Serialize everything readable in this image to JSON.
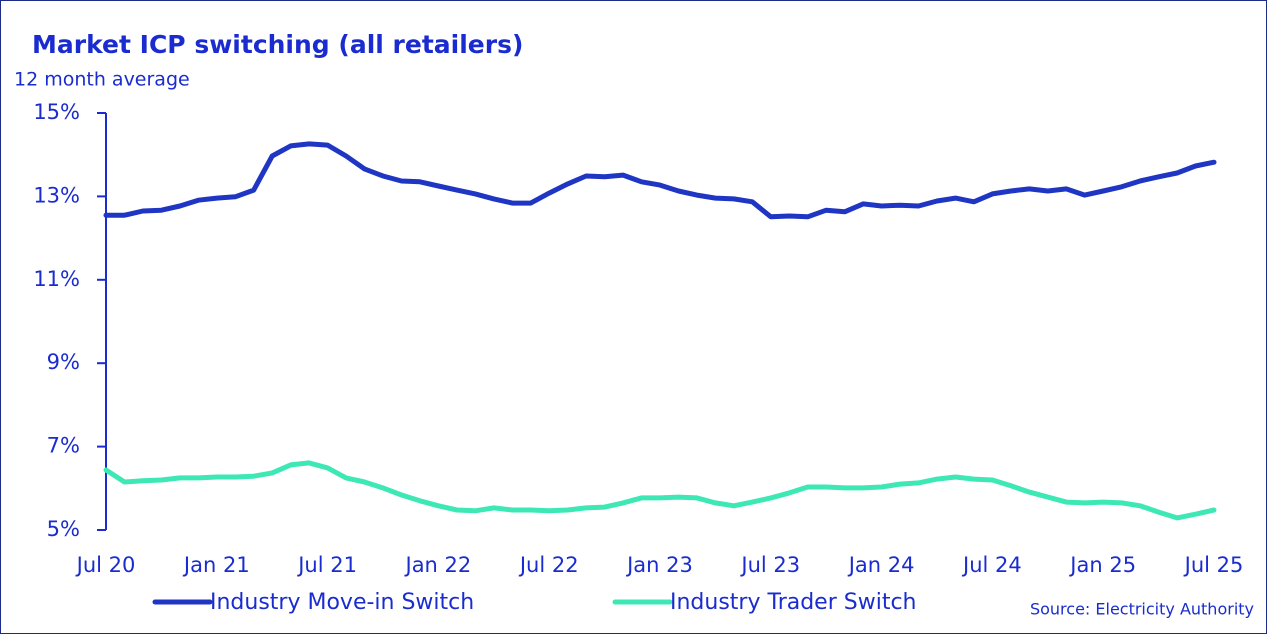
{
  "chart_data": {
    "type": "line",
    "title": "Market ICP switching (all retailers)",
    "subtitle": "12 month average",
    "source": "Source: Electricity Authority",
    "categories": [
      "Jul 20",
      null,
      null,
      null,
      null,
      null,
      "Jan 21",
      null,
      null,
      null,
      null,
      null,
      "Jul 21",
      null,
      null,
      null,
      null,
      null,
      "Jan 22",
      null,
      null,
      null,
      null,
      null,
      "Jul 22",
      null,
      null,
      null,
      null,
      null,
      "Jan 23",
      null,
      null,
      null,
      null,
      null,
      "Jul 23",
      null,
      null,
      null,
      null,
      null,
      "Jan 24",
      null,
      null,
      null,
      null,
      null,
      "Jul 24",
      null,
      null,
      null,
      null,
      null,
      "Jan 25",
      null,
      null,
      null,
      null,
      null,
      "Jul 25"
    ],
    "series": [
      {
        "name": "Industry Move-in Switch",
        "color": "#1f36c4",
        "values": [
          12.55,
          12.55,
          12.65,
          12.67,
          12.77,
          12.91,
          12.96,
          12.99,
          13.15,
          13.97,
          14.21,
          14.26,
          14.23,
          13.97,
          13.66,
          13.49,
          13.37,
          13.35,
          13.25,
          13.15,
          13.06,
          12.94,
          12.84,
          12.84,
          13.08,
          13.3,
          13.49,
          13.47,
          13.51,
          13.35,
          13.27,
          13.13,
          13.03,
          12.96,
          12.94,
          12.87,
          12.51,
          12.53,
          12.51,
          12.67,
          12.63,
          12.82,
          12.77,
          12.79,
          12.77,
          12.89,
          12.96,
          12.87,
          13.06,
          13.13,
          13.18,
          13.13,
          13.18,
          13.03,
          13.13,
          13.23,
          13.37,
          13.47,
          13.56,
          13.73,
          13.82
        ]
      },
      {
        "name": "Industry Trader Switch",
        "color": "#3ee8b5",
        "values": [
          6.44,
          6.15,
          6.18,
          6.2,
          6.25,
          6.25,
          6.27,
          6.27,
          6.29,
          6.37,
          6.56,
          6.61,
          6.49,
          6.25,
          6.15,
          6.01,
          5.84,
          5.7,
          5.58,
          5.48,
          5.46,
          5.53,
          5.48,
          5.48,
          5.46,
          5.48,
          5.53,
          5.55,
          5.65,
          5.77,
          5.77,
          5.79,
          5.77,
          5.65,
          5.58,
          5.67,
          5.77,
          5.89,
          6.03,
          6.03,
          6.01,
          6.01,
          6.03,
          6.1,
          6.13,
          6.22,
          6.27,
          6.22,
          6.2,
          6.06,
          5.91,
          5.79,
          5.67,
          5.65,
          5.67,
          5.65,
          5.58,
          5.43,
          5.29,
          5.38,
          5.48
        ]
      }
    ],
    "ylim": [
      5,
      15
    ],
    "yticks": [
      {
        "value": 5,
        "label": "5%"
      },
      {
        "value": 7,
        "label": "7%"
      },
      {
        "value": 9,
        "label": "9%"
      },
      {
        "value": 11,
        "label": "11%"
      },
      {
        "value": 13,
        "label": "13%"
      },
      {
        "value": 15,
        "label": "15%"
      }
    ],
    "legend": "bottom"
  }
}
